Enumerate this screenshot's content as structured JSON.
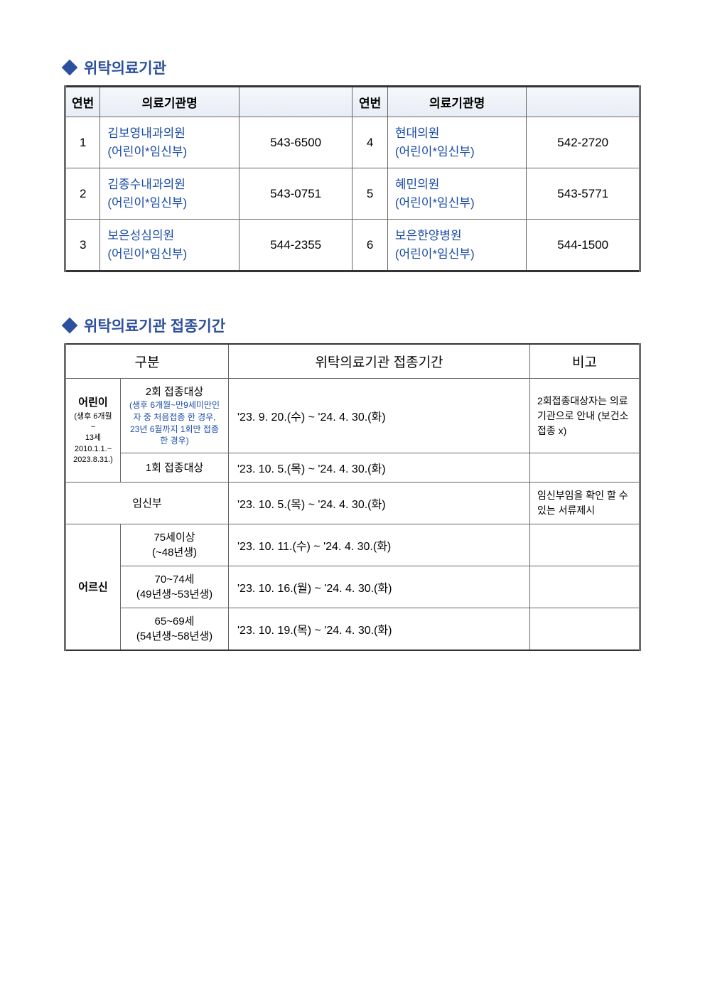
{
  "colors": {
    "accent": "#2c4f9e",
    "link_blue": "#1a4ba8",
    "border": "#666666",
    "header_gradient_top": "#f5f7fb",
    "header_gradient_bottom": "#e8ecf5",
    "text": "#000000",
    "background": "#ffffff"
  },
  "section1": {
    "title": "위탁의료기관",
    "headers": {
      "num": "연번",
      "name": "의료기관명",
      "phone_blank": ""
    },
    "rows": [
      {
        "num": "1",
        "name1": "김보영내과의원",
        "name2": "(어린이*임신부)",
        "phone": "543-6500",
        "num_b": "4",
        "name_b1": "현대의원",
        "name_b2": "(어린이*임신부)",
        "phone_b": "542-2720"
      },
      {
        "num": "2",
        "name1": "김종수내과의원",
        "name2": "(어린이*임신부)",
        "phone": "543-0751",
        "num_b": "5",
        "name_b1": "혜민의원",
        "name_b2": "(어린이*임신부)",
        "phone_b": "543-5771"
      },
      {
        "num": "3",
        "name1": "보은성심의원",
        "name2": "(어린이*임신부)",
        "phone": "544-2355",
        "num_b": "6",
        "name_b1": "보은한양병원",
        "name_b2": "(어린이*임신부)",
        "phone_b": "544-1500"
      }
    ]
  },
  "section2": {
    "title": "위탁의료기관 접종기간",
    "headers": {
      "gubun": "구분",
      "period": "위탁의료기관 접종기간",
      "note": "비고"
    },
    "rows": {
      "child": {
        "cat_label": "어린이",
        "cat_sub": "(생후 6개월~\n13세\n2010.1.1.~\n2023.8.31.)",
        "sub1_label": "2회 접종대상",
        "sub1_small": "(생후 6개월~만9세미만인\n자 중 처음접종 한 경우,\n23년 6월까지 1회만 접종\n한 경우)",
        "sub1_period": "'23. 9. 20.(수) ~  '24. 4. 30.(화)",
        "sub1_note": "2회접종대상자는 의료기관으로 안내 (보건소 접종 x)",
        "sub2_label": "1회 접종대상",
        "sub2_period": "'23. 10. 5.(목) ~  '24. 4. 30.(화)",
        "sub2_note": ""
      },
      "pregnant": {
        "label": "임신부",
        "period": "'23. 10. 5.(목) ~  '24. 4. 30.(화)",
        "note": "임신부임을 확인 할 수 있는 서류제시"
      },
      "elder": {
        "cat_label": "어르신",
        "r1_label": "75세이상",
        "r1_sub": "(~48년생)",
        "r1_period": "'23. 10. 11.(수) ~  '24.  4. 30.(화)",
        "r1_note": "",
        "r2_label": "70~74세",
        "r2_sub": "(49년생~53년생)",
        "r2_period": "'23. 10. 16.(월) ~  '24.  4. 30.(화)",
        "r2_note": "",
        "r3_label": "65~69세",
        "r3_sub": "(54년생~58년생)",
        "r3_period": "'23. 10. 19.(목) ~  '24.  4. 30.(화)",
        "r3_note": ""
      }
    }
  }
}
